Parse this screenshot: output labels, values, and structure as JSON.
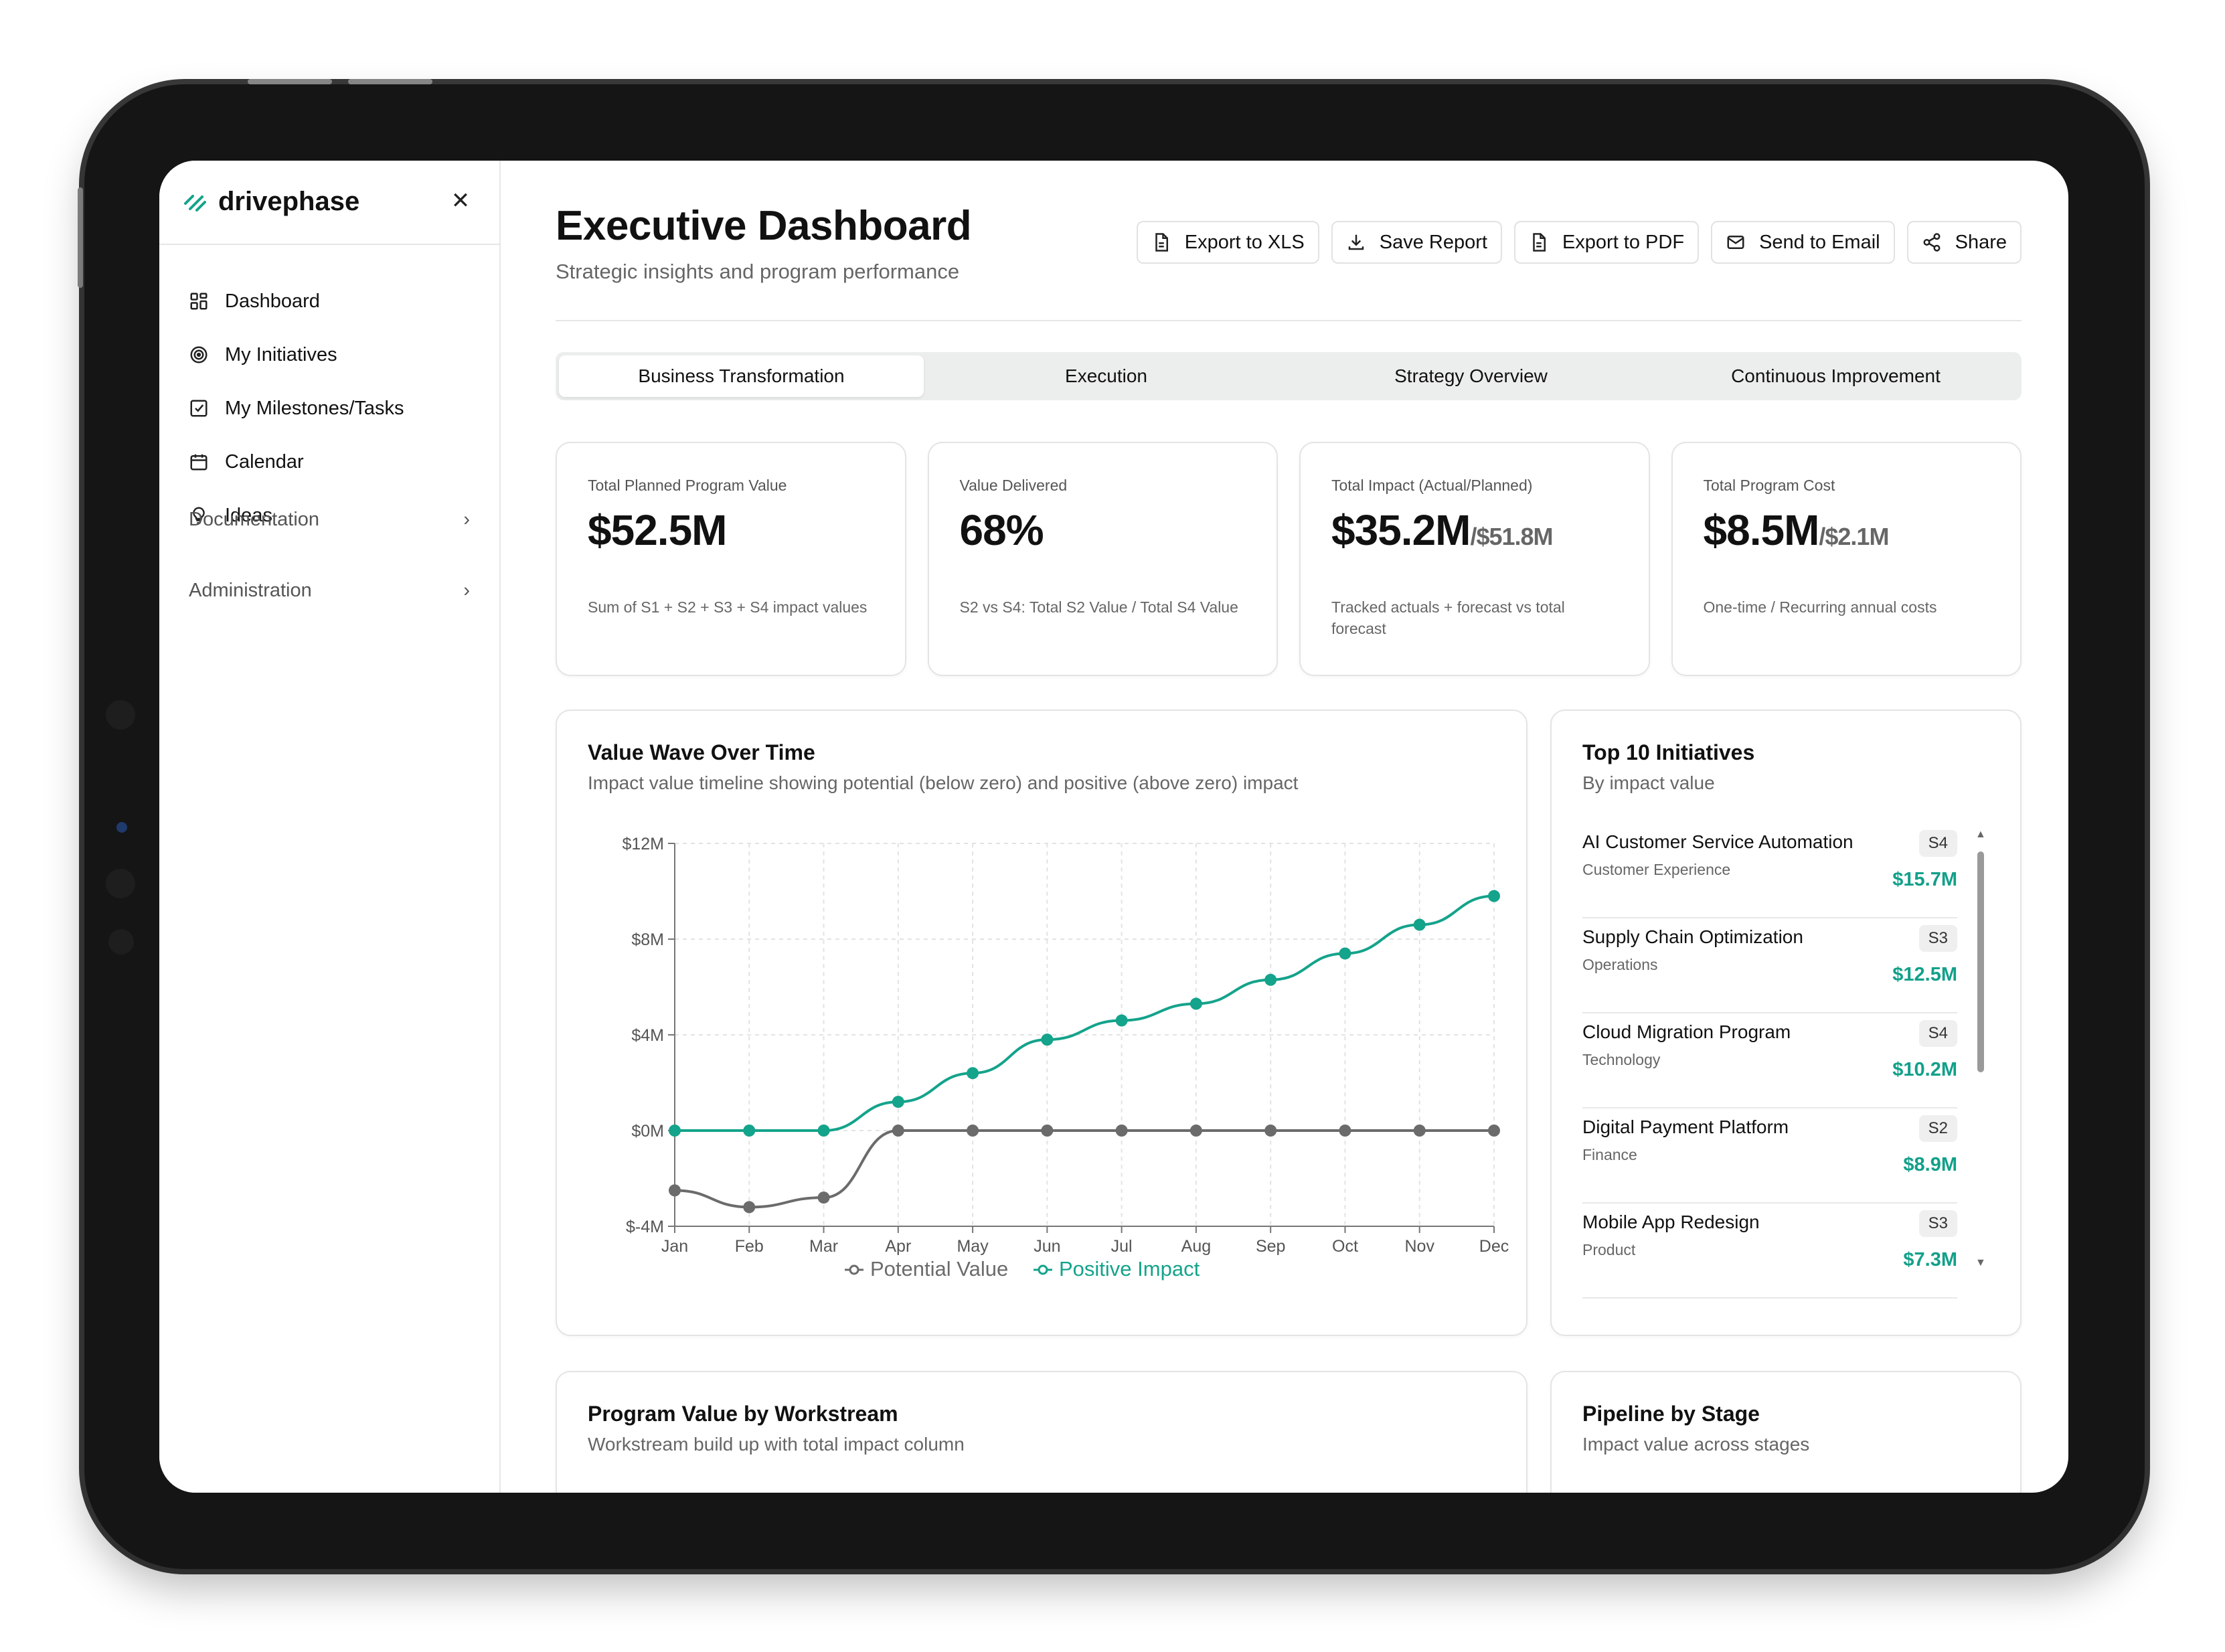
{
  "app": {
    "brand": "drivephase"
  },
  "sidebar": {
    "items": [
      {
        "label": "Dashboard",
        "icon": "grid-icon"
      },
      {
        "label": "My Initiatives",
        "icon": "target-icon"
      },
      {
        "label": "My Milestones/Tasks",
        "icon": "checklist-icon"
      },
      {
        "label": "Calendar",
        "icon": "calendar-icon"
      },
      {
        "label": "Ideas",
        "icon": "lightbulb-icon"
      }
    ],
    "sections": [
      {
        "label": "Documentation"
      },
      {
        "label": "Administration"
      }
    ]
  },
  "header": {
    "title": "Executive Dashboard",
    "subtitle": "Strategic insights and program performance",
    "actions": [
      {
        "label": "Export to XLS",
        "icon": "file-icon"
      },
      {
        "label": "Save Report",
        "icon": "download-icon"
      },
      {
        "label": "Export to PDF",
        "icon": "file-icon"
      },
      {
        "label": "Send to Email",
        "icon": "mail-icon"
      },
      {
        "label": "Share",
        "icon": "share-icon"
      }
    ]
  },
  "tabs": [
    {
      "label": "Business Transformation",
      "active": true
    },
    {
      "label": "Execution"
    },
    {
      "label": "Strategy Overview"
    },
    {
      "label": "Continuous Improvement"
    }
  ],
  "kpis": [
    {
      "label": "Total Planned Program Value",
      "value": "$52.5M",
      "sub": "",
      "desc": "Sum of S1 + S2 + S3 + S4 impact values"
    },
    {
      "label": "Value Delivered",
      "value": "68%",
      "sub": "",
      "desc": "S2 vs S4: Total S2 Value / Total S4 Value"
    },
    {
      "label": "Total Impact (Actual/Planned)",
      "value": "$35.2M",
      "sub": "/$51.8M",
      "desc": "Tracked actuals + forecast vs total forecast"
    },
    {
      "label": "Total Program Cost",
      "value": "$8.5M",
      "sub": "/$2.1M",
      "desc": "One-time / Recurring annual costs"
    }
  ],
  "value_wave": {
    "title": "Value Wave Over Time",
    "subtitle": "Impact value timeline showing potential (below zero) and positive (above zero) impact"
  },
  "chart_data": {
    "type": "line",
    "x": [
      "Jan",
      "Feb",
      "Mar",
      "Apr",
      "May",
      "Jun",
      "Jul",
      "Aug",
      "Sep",
      "Oct",
      "Nov",
      "Dec"
    ],
    "y_ticks": [
      "$12M",
      "$8M",
      "$4M",
      "$0M",
      "$-4M"
    ],
    "ylim": [
      -4,
      12
    ],
    "grid": true,
    "legend_position": "bottom",
    "series": [
      {
        "name": "Potential Value",
        "color": "#6b6b6b",
        "values": [
          -2.5,
          -3.2,
          -2.8,
          0,
          0,
          0,
          0,
          0,
          0,
          0,
          0,
          0
        ]
      },
      {
        "name": "Positive Impact",
        "color": "#14a38b",
        "values": [
          0,
          0,
          0,
          1.2,
          2.4,
          3.8,
          4.6,
          5.3,
          6.3,
          7.4,
          8.6,
          9.8
        ]
      }
    ]
  },
  "top10": {
    "title": "Top 10 Initiatives",
    "subtitle": "By impact value",
    "items": [
      {
        "name": "AI Customer Service Automation",
        "dept": "Customer Experience",
        "stage": "S4",
        "value": "$15.7M"
      },
      {
        "name": "Supply Chain Optimization",
        "dept": "Operations",
        "stage": "S3",
        "value": "$12.5M"
      },
      {
        "name": "Cloud Migration Program",
        "dept": "Technology",
        "stage": "S4",
        "value": "$10.2M"
      },
      {
        "name": "Digital Payment Platform",
        "dept": "Finance",
        "stage": "S2",
        "value": "$8.9M"
      },
      {
        "name": "Mobile App Redesign",
        "dept": "Product",
        "stage": "S3",
        "value": "$7.3M"
      }
    ]
  },
  "program_value": {
    "title": "Program Value by Workstream",
    "subtitle": "Workstream build up with total impact column"
  },
  "pipeline": {
    "title": "Pipeline by Stage",
    "subtitle": "Impact value across stages"
  },
  "colors": {
    "accent": "#14a38b",
    "neutral": "#6b6b6b"
  }
}
